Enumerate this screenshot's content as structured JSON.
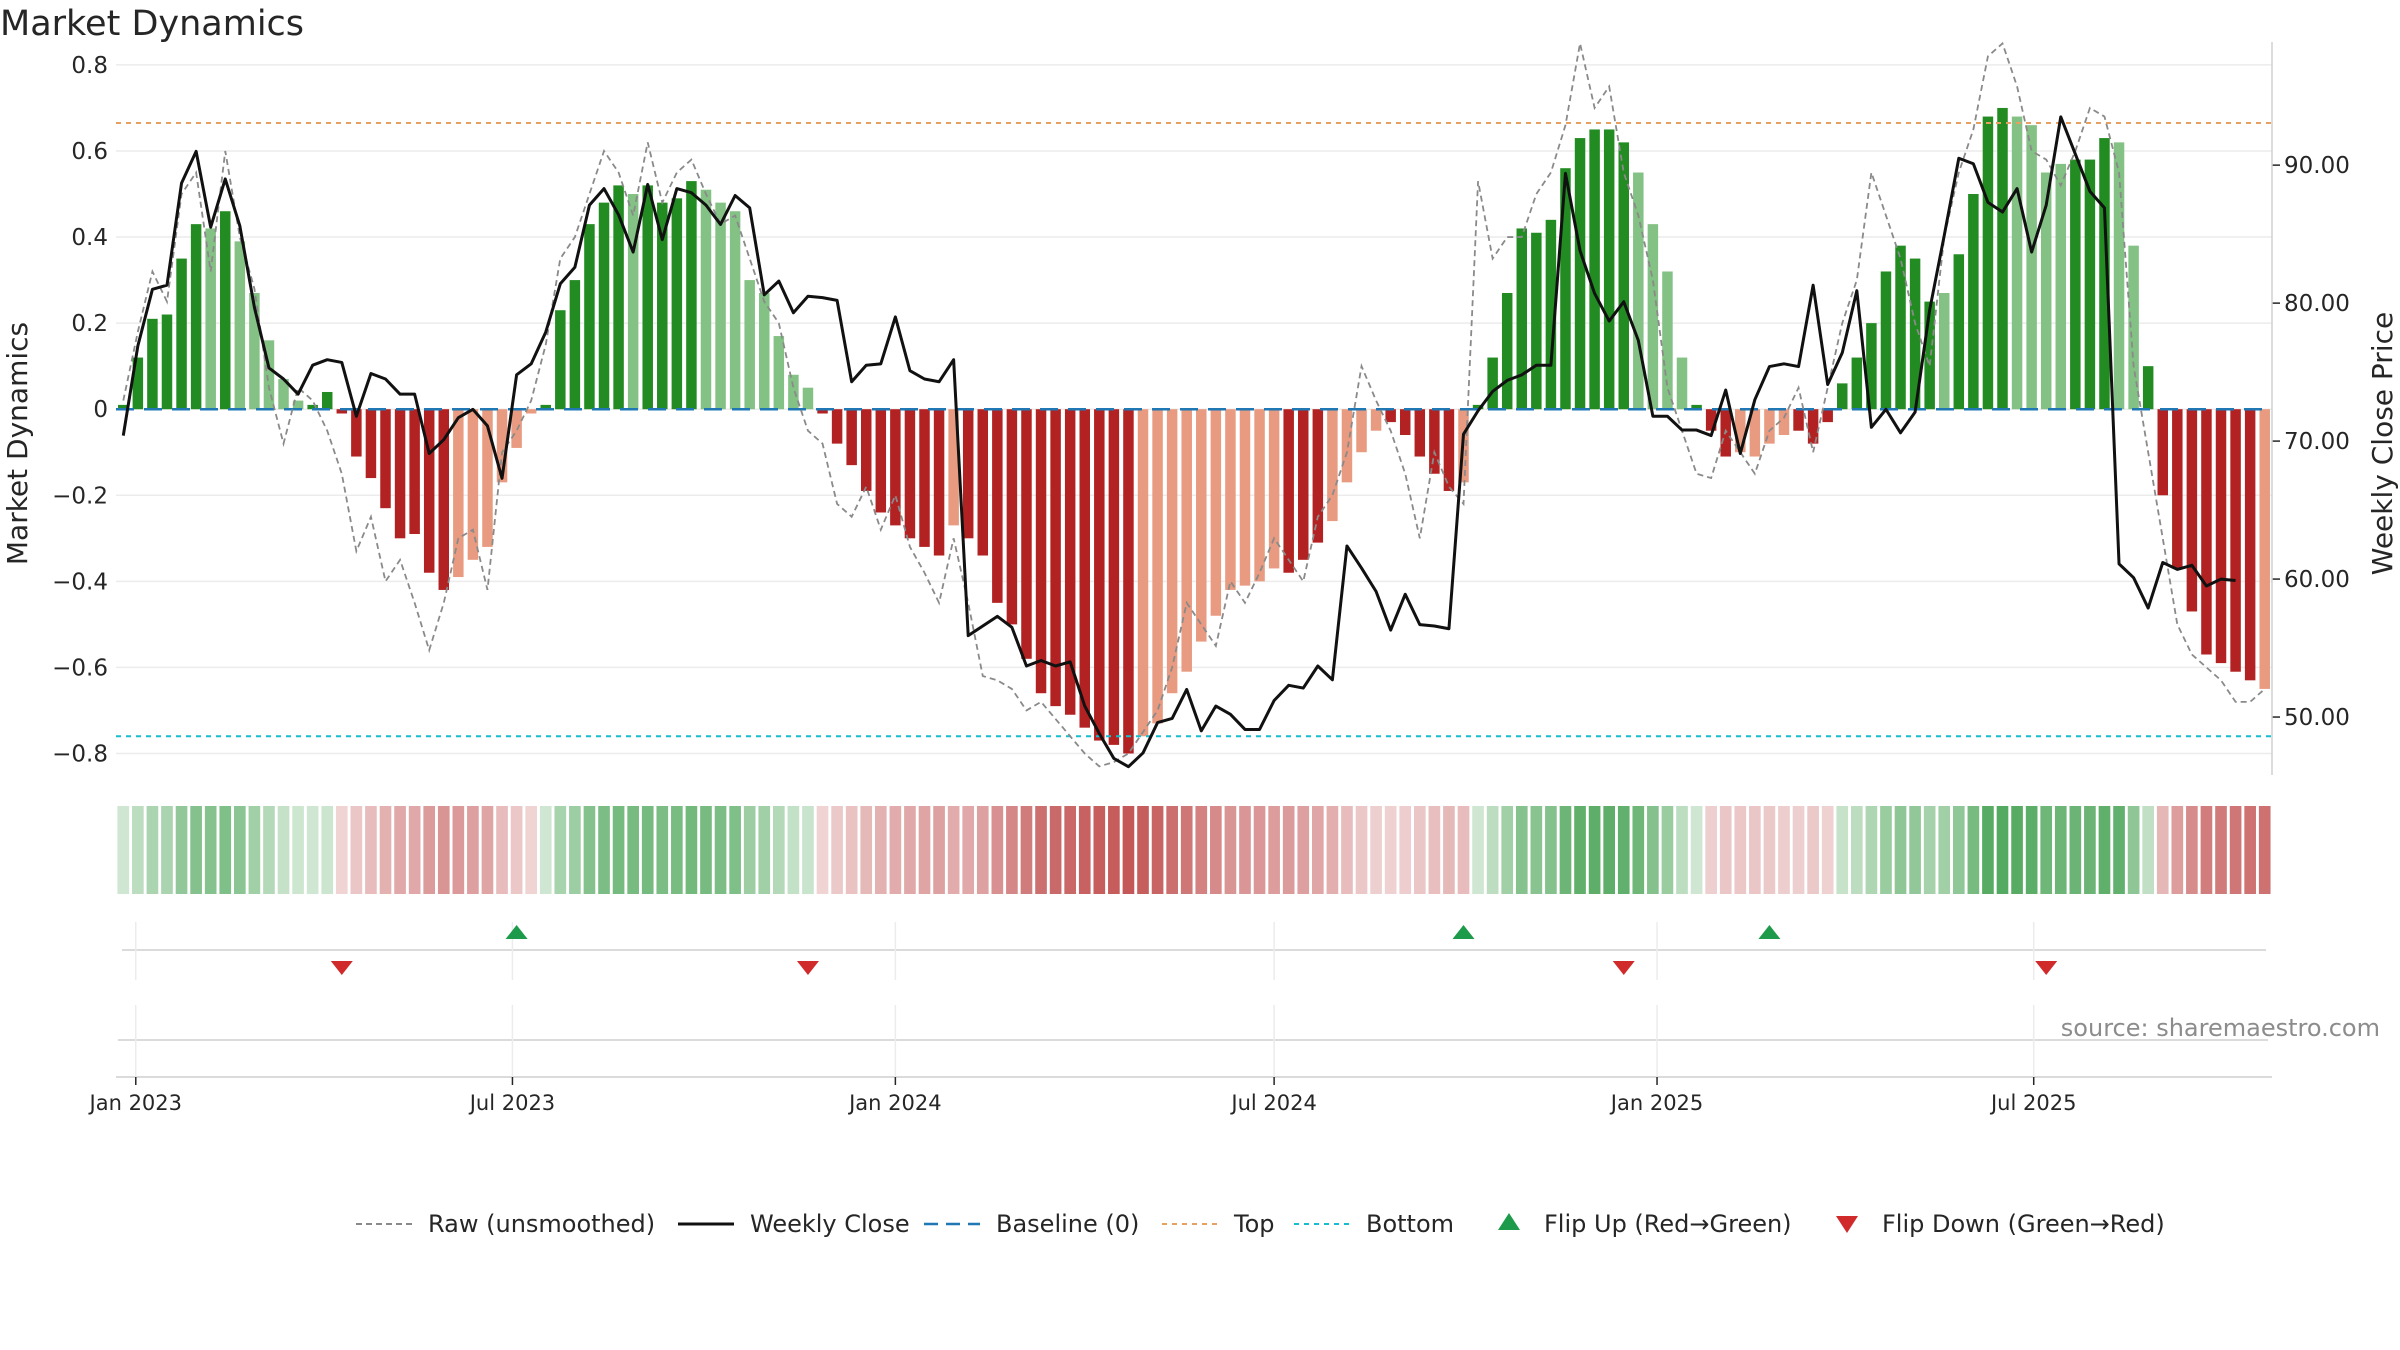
{
  "title": "Market Dynamics",
  "source": "source: sharemaestro.com",
  "colors": {
    "strong_green": "#228b22",
    "light_green": "#84c184",
    "strong_red": "#b22222",
    "light_red": "#e89b80",
    "raw": "#8a8a8a",
    "close": "#111111",
    "baseline": "#1f77b4",
    "top": "#e8a060",
    "bottom": "#17becf",
    "flip_up": "#1e9b4a",
    "flip_down": "#d02a2a"
  },
  "chart_data": {
    "type": "bar",
    "title": "Market Dynamics",
    "ylabel": "Market Dynamics",
    "y2label": "Weekly Close Price",
    "ylim": [
      -0.85,
      0.83
    ],
    "y2lim": [
      45.8,
      98.2
    ],
    "yticks": [
      0.8,
      0.6,
      0.4,
      0.2,
      0,
      -0.2,
      -0.4,
      -0.6,
      -0.8
    ],
    "ytick_labels": [
      "0.8",
      "0.6",
      "0.4",
      "0.2",
      "0",
      "−0.2",
      "−0.4",
      "−0.6",
      "−0.8"
    ],
    "y2ticks": [
      90,
      80,
      70,
      60,
      50
    ],
    "y2tick_labels": [
      "90.00",
      "80.00",
      "70.00",
      "60.00",
      "50.00"
    ],
    "x_start": "2022-12-26",
    "x_step_days": 7,
    "xticks": [
      {
        "label": "Jan 2023",
        "date": "2023-01-01"
      },
      {
        "label": "Jul 2023",
        "date": "2023-07-01"
      },
      {
        "label": "Jan 2024",
        "date": "2024-01-01"
      },
      {
        "label": "Jul 2024",
        "date": "2024-07-01"
      },
      {
        "label": "Jan 2025",
        "date": "2025-01-01"
      },
      {
        "label": "Jul 2025",
        "date": "2025-07-01"
      }
    ],
    "top_level": 0.665,
    "bottom_level": -0.76,
    "dynamics": [
      0.01,
      0.12,
      0.21,
      0.22,
      0.35,
      0.43,
      0.42,
      0.46,
      0.39,
      0.27,
      0.16,
      0.07,
      0.02,
      0.01,
      0.04,
      -0.01,
      -0.11,
      -0.16,
      -0.23,
      -0.3,
      -0.29,
      -0.38,
      -0.42,
      -0.39,
      -0.35,
      -0.32,
      -0.17,
      -0.09,
      -0.01,
      0.01,
      0.23,
      0.3,
      0.43,
      0.48,
      0.52,
      0.5,
      0.52,
      0.48,
      0.49,
      0.53,
      0.51,
      0.48,
      0.46,
      0.3,
      0.27,
      0.17,
      0.08,
      0.05,
      -0.01,
      -0.08,
      -0.13,
      -0.19,
      -0.24,
      -0.27,
      -0.3,
      -0.32,
      -0.34,
      -0.27,
      -0.3,
      -0.34,
      -0.45,
      -0.5,
      -0.58,
      -0.66,
      -0.69,
      -0.71,
      -0.74,
      -0.77,
      -0.78,
      -0.8,
      -0.76,
      -0.73,
      -0.66,
      -0.61,
      -0.54,
      -0.48,
      -0.42,
      -0.41,
      -0.4,
      -0.37,
      -0.38,
      -0.35,
      -0.31,
      -0.26,
      -0.17,
      -0.1,
      -0.05,
      -0.03,
      -0.06,
      -0.11,
      -0.15,
      -0.19,
      -0.17,
      0.01,
      0.12,
      0.27,
      0.42,
      0.41,
      0.44,
      0.56,
      0.63,
      0.65,
      0.65,
      0.62,
      0.55,
      0.43,
      0.32,
      0.12,
      0.01,
      -0.05,
      -0.11,
      -0.1,
      -0.11,
      -0.08,
      -0.06,
      -0.05,
      -0.08,
      -0.03,
      0.06,
      0.12,
      0.2,
      0.32,
      0.38,
      0.35,
      0.25,
      0.27,
      0.36,
      0.5,
      0.68,
      0.7,
      0.68,
      0.66,
      0.55,
      0.57,
      0.58,
      0.58,
      0.63,
      0.62,
      0.38,
      0.1,
      -0.2,
      -0.37,
      -0.47,
      -0.57,
      -0.59,
      -0.61,
      -0.63,
      -0.65
    ],
    "dynamics_strength": [
      "strong",
      "strong",
      "strong",
      "strong",
      "strong",
      "strong",
      "light",
      "strong",
      "light",
      "light",
      "light",
      "light",
      "light",
      "strong",
      "strong",
      "strong",
      "strong",
      "strong",
      "strong",
      "strong",
      "strong",
      "strong",
      "strong",
      "light",
      "light",
      "light",
      "light",
      "light",
      "light",
      "strong",
      "strong",
      "strong",
      "strong",
      "strong",
      "strong",
      "light",
      "strong",
      "strong",
      "strong",
      "strong",
      "light",
      "light",
      "light",
      "light",
      "light",
      "light",
      "light",
      "light",
      "strong",
      "strong",
      "strong",
      "strong",
      "strong",
      "strong",
      "strong",
      "strong",
      "strong",
      "light",
      "strong",
      "strong",
      "strong",
      "strong",
      "strong",
      "strong",
      "strong",
      "strong",
      "strong",
      "strong",
      "strong",
      "strong",
      "light",
      "light",
      "light",
      "light",
      "light",
      "light",
      "light",
      "light",
      "light",
      "light",
      "strong",
      "strong",
      "strong",
      "light",
      "light",
      "light",
      "light",
      "strong",
      "strong",
      "strong",
      "strong",
      "strong",
      "light",
      "strong",
      "strong",
      "strong",
      "strong",
      "strong",
      "strong",
      "strong",
      "strong",
      "strong",
      "strong",
      "strong",
      "light",
      "light",
      "light",
      "light",
      "strong",
      "strong",
      "strong",
      "light",
      "light",
      "light",
      "light",
      "strong",
      "strong",
      "strong",
      "strong",
      "strong",
      "strong",
      "strong",
      "strong",
      "strong",
      "strong",
      "light",
      "strong",
      "strong",
      "strong",
      "strong",
      "light",
      "light",
      "light",
      "light",
      "strong",
      "strong",
      "strong",
      "light",
      "light",
      "strong",
      "strong",
      "strong",
      "strong",
      "strong",
      "strong",
      "strong",
      "strong"
    ],
    "raw": [
      0.02,
      0.18,
      0.32,
      0.25,
      0.5,
      0.55,
      0.32,
      0.6,
      0.4,
      0.28,
      0.05,
      -0.08,
      0.05,
      0.02,
      -0.05,
      -0.15,
      -0.33,
      -0.25,
      -0.4,
      -0.35,
      -0.45,
      -0.56,
      -0.45,
      -0.3,
      -0.28,
      -0.42,
      -0.1,
      -0.05,
      0.02,
      0.15,
      0.35,
      0.4,
      0.5,
      0.6,
      0.55,
      0.45,
      0.62,
      0.48,
      0.55,
      0.58,
      0.5,
      0.43,
      0.45,
      0.35,
      0.25,
      0.2,
      0.05,
      -0.05,
      -0.08,
      -0.22,
      -0.25,
      -0.18,
      -0.28,
      -0.2,
      -0.32,
      -0.38,
      -0.45,
      -0.3,
      -0.45,
      -0.62,
      -0.63,
      -0.65,
      -0.7,
      -0.68,
      -0.72,
      -0.76,
      -0.8,
      -0.83,
      -0.82,
      -0.8,
      -0.75,
      -0.7,
      -0.6,
      -0.45,
      -0.5,
      -0.55,
      -0.4,
      -0.45,
      -0.38,
      -0.3,
      -0.35,
      -0.4,
      -0.25,
      -0.2,
      -0.1,
      0.1,
      0.02,
      -0.05,
      -0.15,
      -0.3,
      -0.1,
      -0.18,
      -0.22,
      0.53,
      0.35,
      0.4,
      0.4,
      0.5,
      0.55,
      0.66,
      0.85,
      0.7,
      0.75,
      0.55,
      0.45,
      0.3,
      0.05,
      -0.05,
      -0.15,
      -0.16,
      -0.05,
      -0.1,
      -0.15,
      -0.05,
      -0.02,
      0.05,
      -0.1,
      0.05,
      0.2,
      0.3,
      0.55,
      0.45,
      0.35,
      0.2,
      0.1,
      0.4,
      0.55,
      0.65,
      0.82,
      0.85,
      0.75,
      0.6,
      0.58,
      0.52,
      0.6,
      0.7,
      0.68,
      0.55,
      0.1,
      -0.1,
      -0.3,
      -0.5,
      -0.57,
      -0.6,
      -0.63,
      -0.68,
      -0.68,
      -0.65
    ],
    "close": [
      70.4,
      76.9,
      81.0,
      81.3,
      88.7,
      91.0,
      85.5,
      89.0,
      85.6,
      79.7,
      75.3,
      74.5,
      73.4,
      75.5,
      75.9,
      75.7,
      71.8,
      74.9,
      74.5,
      73.4,
      73.4,
      69.1,
      70.1,
      71.7,
      72.3,
      71.1,
      67.3,
      74.8,
      75.6,
      77.9,
      81.4,
      82.6,
      87.1,
      88.3,
      86.4,
      83.7,
      88.6,
      84.6,
      88.3,
      88.0,
      87.1,
      85.7,
      87.8,
      86.9,
      80.6,
      81.6,
      79.3,
      80.5,
      80.4,
      80.2,
      74.3,
      75.5,
      75.6,
      79.0,
      75.1,
      74.5,
      74.3,
      75.9,
      55.9,
      56.6,
      57.3,
      56.5,
      53.7,
      54.1,
      53.7,
      54.0,
      50.8,
      48.8,
      47.0,
      46.4,
      47.4,
      49.6,
      49.9,
      52.0,
      49.0,
      50.8,
      50.2,
      49.1,
      49.1,
      51.2,
      52.3,
      52.1,
      53.7,
      52.7,
      62.4,
      60.8,
      59.1,
      56.3,
      58.9,
      56.7,
      56.6,
      56.4,
      70.5,
      72.2,
      73.6,
      74.4,
      74.8,
      75.5,
      75.5,
      89.4,
      83.8,
      80.7,
      78.7,
      80.1,
      77.3,
      71.8,
      71.8,
      70.8,
      70.8,
      70.4,
      73.7,
      69.1,
      73.0,
      75.4,
      75.6,
      75.4,
      81.3,
      74.1,
      76.4,
      80.9,
      71.0,
      72.3,
      70.6,
      72.1,
      79.5,
      84.9,
      90.5,
      90.1,
      87.3,
      86.6,
      88.3,
      83.7,
      87.1,
      93.5,
      90.8,
      88.1,
      86.9,
      61.1,
      60.1,
      57.9,
      61.2,
      60.7,
      61.0,
      59.5,
      60.0,
      59.9
    ],
    "regime_legend": [
      "Raw (unsmoothed)",
      "Weekly Close",
      "Baseline (0)",
      "Top",
      "Bottom",
      "Flip Up (Red→Green)",
      "Flip Down (Green→Red)"
    ],
    "flip_up_weeks": [
      27,
      92,
      113
    ],
    "flip_down_weeks": [
      15,
      47,
      103,
      132
    ]
  }
}
